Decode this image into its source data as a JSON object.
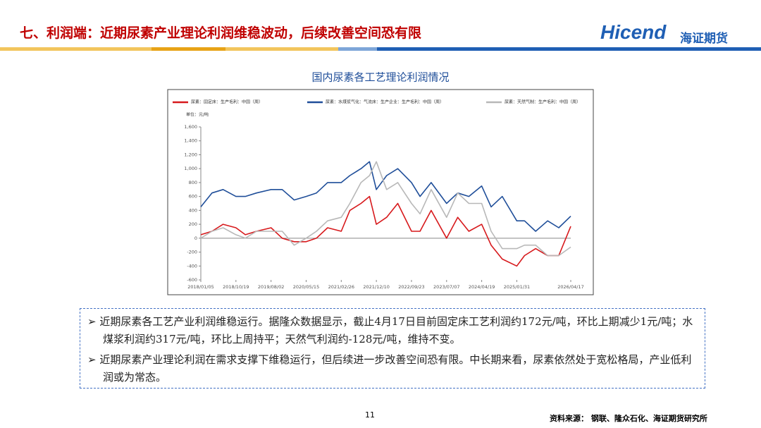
{
  "header": {
    "title": "七、利润端：近期尿素产业理论利润维稳波动，后续改善空间恐有限",
    "logo_text": "Hicend",
    "logo_cn": "海证期货"
  },
  "chart_data": {
    "type": "line",
    "title": "国内尿素各工艺理论利润情况",
    "unit_label": "单位：元/吨",
    "x": [
      "2018/01/05",
      "2018/04/06",
      "2018/07/06",
      "2018/10/19",
      "2019/01/04",
      "2019/04/05",
      "2019/08/02",
      "2019/11/01",
      "2020/02/07",
      "2020/05/15",
      "2020/08/07",
      "2020/11/06",
      "2021/02/26",
      "2021/05/07",
      "2021/08/06",
      "2021/10/15",
      "2021/12/10",
      "2022/03/04",
      "2022/06/03",
      "2022/09/23",
      "2022/12/02",
      "2023/03/03",
      "2023/07/07",
      "2023/10/06",
      "2024/01/05",
      "2024/04/19",
      "2024/07/05",
      "2024/10/04",
      "2025/01/31",
      "2025/04/04",
      "2025/07/04",
      "2025/10/10",
      "2026/01/09",
      "2026/04/17"
    ],
    "series": [
      {
        "name": "尿素：固定床：生产毛利：中国（周）",
        "color": "#d7191c",
        "values": [
          50,
          100,
          200,
          150,
          50,
          100,
          150,
          0,
          -50,
          -50,
          0,
          150,
          100,
          400,
          500,
          600,
          200,
          300,
          500,
          100,
          100,
          400,
          0,
          300,
          100,
          200,
          -100,
          -300,
          -400,
          -250,
          -150,
          -250,
          -250,
          172
        ]
      },
      {
        "name": "尿素：水煤浆气化：气流床：生产企业：生产毛利：中国（周）",
        "color": "#1f4e99",
        "values": [
          450,
          650,
          700,
          600,
          600,
          650,
          700,
          700,
          550,
          600,
          650,
          800,
          800,
          900,
          1000,
          1100,
          700,
          900,
          1000,
          800,
          600,
          800,
          500,
          650,
          600,
          750,
          450,
          600,
          250,
          250,
          100,
          250,
          150,
          317
        ]
      },
      {
        "name": "尿素：天然气制：生产毛利：中国（周）",
        "color": "#b8b8b8",
        "values": [
          0,
          100,
          150,
          50,
          0,
          100,
          100,
          100,
          -100,
          0,
          100,
          250,
          300,
          500,
          800,
          900,
          1100,
          700,
          800,
          500,
          350,
          700,
          300,
          650,
          500,
          500,
          100,
          -150,
          -150,
          -100,
          -100,
          -250,
          -250,
          -128
        ]
      }
    ],
    "xlim": [
      "2018/01/05",
      "2026/04/17"
    ],
    "xticks": [
      "2018/01/05",
      "2018/10/19",
      "2019/08/02",
      "2020/05/15",
      "2021/02/26",
      "2021/12/10",
      "2022/09/23",
      "2023/07/07",
      "2024/04/19",
      "2025/01/31",
      "2026/04/17"
    ],
    "ylim": [
      -600,
      1600
    ],
    "yticks": [
      {
        "value": 1600,
        "label": "1,600"
      },
      {
        "value": 1400,
        "label": "1,400"
      },
      {
        "value": 1200,
        "label": "1,200"
      },
      {
        "value": 1000,
        "label": "1,000"
      },
      800,
      600,
      400,
      200,
      0,
      -200,
      -400,
      -600
    ]
  },
  "bullets": [
    "近期尿素各工艺产业利润维稳运行。据隆众数据显示，截止4月17日目前固定床工艺利润约172元/吨，环比上期减少1元/吨；水煤浆利润约317元/吨，环比上周持平；天然气利润约-128元/吨，维持不变。",
    "近期尿素产业理论利润在需求支撑下维稳运行，但后续进一步改善空间恐有限。中长期来看，尿素依然处于宽松格局，产业低利润或为常态。"
  ],
  "footer": {
    "page": "11",
    "source": "资料来源： 钢联、隆众石化、海证期货研究所"
  }
}
